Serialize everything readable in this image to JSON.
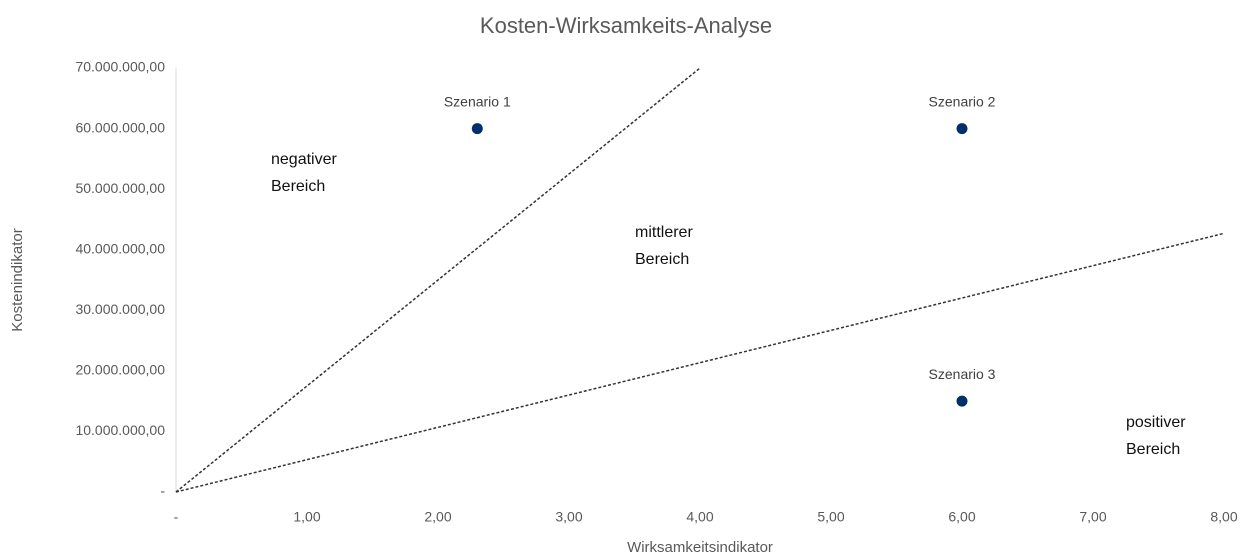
{
  "chart_data": {
    "type": "scatter",
    "title": "Kosten-Wirksamkeits-Analyse",
    "x_label": "Wirksamkeitsindikator",
    "y_label": "Kostenindikator",
    "xlim": [
      0,
      8
    ],
    "ylim": [
      0,
      70000000
    ],
    "xticks": [
      {
        "value": 0,
        "label": "-"
      },
      {
        "value": 1,
        "label": "1,00"
      },
      {
        "value": 2,
        "label": "2,00"
      },
      {
        "value": 3,
        "label": "3,00"
      },
      {
        "value": 4,
        "label": "4,00"
      },
      {
        "value": 5,
        "label": "5,00"
      },
      {
        "value": 6,
        "label": "6,00"
      },
      {
        "value": 7,
        "label": "7,00"
      },
      {
        "value": 8,
        "label": "8,00"
      }
    ],
    "yticks": [
      {
        "value": 0,
        "label": "-"
      },
      {
        "value": 10000000,
        "label": "10.000.000,00"
      },
      {
        "value": 20000000,
        "label": "20.000.000,00"
      },
      {
        "value": 30000000,
        "label": "30.000.000,00"
      },
      {
        "value": 40000000,
        "label": "40.000.000,00"
      },
      {
        "value": 50000000,
        "label": "50.000.000,00"
      },
      {
        "value": 60000000,
        "label": "60.000.000,00"
      },
      {
        "value": 70000000,
        "label": "70.000.000,00"
      }
    ],
    "grid": false,
    "labels": [
      "Szenario 1",
      "Szenario 2",
      "Szenario 3"
    ],
    "x": [
      2.3,
      6,
      6
    ],
    "values": [
      60000000,
      60000000,
      15000000
    ],
    "color": "#002f6c",
    "lines": [
      {
        "x": [
          0,
          4
        ],
        "values": [
          0,
          70000000
        ],
        "color": "#333333"
      },
      {
        "x": [
          0,
          8
        ],
        "values": [
          0,
          42700000
        ],
        "color": "#333333"
      }
    ],
    "annotations": [
      {
        "lines": [
          "negativer",
          "Bereich"
        ]
      },
      {
        "lines": [
          "mittlerer",
          "Bereich"
        ]
      },
      {
        "lines": [
          "positiver",
          "Bereich"
        ]
      }
    ]
  }
}
